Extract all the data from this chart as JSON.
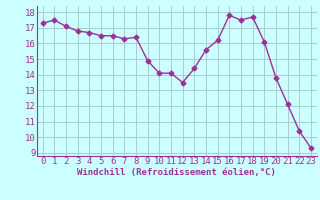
{
  "x": [
    0,
    1,
    2,
    3,
    4,
    5,
    6,
    7,
    8,
    9,
    10,
    11,
    12,
    13,
    14,
    15,
    16,
    17,
    18,
    19,
    20,
    21,
    22,
    23
  ],
  "y": [
    17.3,
    17.5,
    17.1,
    16.8,
    16.7,
    16.5,
    16.5,
    16.3,
    16.4,
    14.9,
    14.1,
    14.1,
    13.5,
    14.4,
    15.6,
    16.2,
    17.8,
    17.5,
    17.7,
    16.1,
    13.8,
    12.1,
    10.4,
    9.3
  ],
  "line_color": "#993399",
  "marker": "D",
  "marker_size": 2.5,
  "bg_color": "#ccffff",
  "grid_color": "#aacccc",
  "xlabel": "Windchill (Refroidissement éolien,°C)",
  "ylim": [
    8.8,
    18.4
  ],
  "xlim": [
    -0.5,
    23.5
  ],
  "yticks": [
    9,
    10,
    11,
    12,
    13,
    14,
    15,
    16,
    17,
    18
  ],
  "xticks": [
    0,
    1,
    2,
    3,
    4,
    5,
    6,
    7,
    8,
    9,
    10,
    11,
    12,
    13,
    14,
    15,
    16,
    17,
    18,
    19,
    20,
    21,
    22,
    23
  ],
  "xlabel_fontsize": 6.5,
  "tick_fontsize": 6.5,
  "line_width": 1.0
}
